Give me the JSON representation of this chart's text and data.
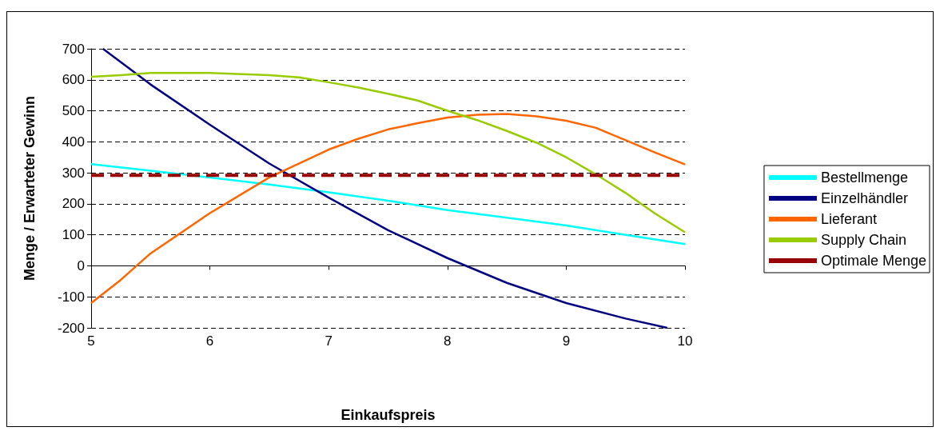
{
  "chart_data": {
    "type": "line",
    "xlabel": "Einkaufspreis",
    "ylabel": "Menge / Erwarteter Gewinn",
    "xlim": [
      5,
      10
    ],
    "xticks": [
      5,
      6,
      7,
      8,
      9,
      10
    ],
    "ylim": [
      -200,
      700
    ],
    "yticks": [
      -200,
      -100,
      0,
      100,
      200,
      300,
      400,
      500,
      600,
      700
    ],
    "grid": "y",
    "legend": "right",
    "marker": "none",
    "series": [
      {
        "name": "Bestellmenge",
        "color": "#00ffff",
        "x": [
          5,
          5.5,
          6,
          6.5,
          7,
          7.5,
          8,
          8.5,
          9,
          9.5,
          10
        ],
        "values": [
          328,
          307,
          285,
          262,
          237,
          210,
          180,
          155,
          130,
          100,
          70
        ]
      },
      {
        "name": "Einzelhändler",
        "color": "#000080",
        "x": [
          5.1,
          5.5,
          6,
          6.5,
          7,
          7.5,
          8,
          8.5,
          9,
          9.5,
          9.85
        ],
        "values": [
          700,
          585,
          455,
          330,
          220,
          115,
          25,
          -55,
          -120,
          -170,
          -200
        ]
      },
      {
        "name": "Lieferant",
        "color": "#ff6600",
        "x": [
          5,
          5.25,
          5.5,
          6,
          6.5,
          7,
          7.25,
          7.5,
          7.75,
          8,
          8.25,
          8.5,
          8.75,
          9,
          9.25,
          9.5,
          9.75,
          10
        ],
        "values": [
          -120,
          -45,
          40,
          170,
          285,
          375,
          410,
          440,
          460,
          478,
          487,
          490,
          482,
          468,
          445,
          405,
          365,
          327
        ]
      },
      {
        "name": "Supply Chain",
        "color": "#99cc00",
        "x": [
          5,
          5.25,
          5.5,
          6,
          6.5,
          6.75,
          7,
          7.25,
          7.5,
          7.75,
          8,
          8.25,
          8.5,
          8.75,
          9,
          9.25,
          9.5,
          9.75,
          10
        ],
        "values": [
          610,
          615,
          622,
          622,
          615,
          608,
          592,
          575,
          555,
          533,
          500,
          470,
          435,
          397,
          350,
          295,
          235,
          168,
          108
        ]
      },
      {
        "name": "Optimale Menge",
        "color": "#990000",
        "line_style": "dashed",
        "x": [
          5,
          10
        ],
        "values": [
          292,
          292
        ]
      }
    ]
  }
}
